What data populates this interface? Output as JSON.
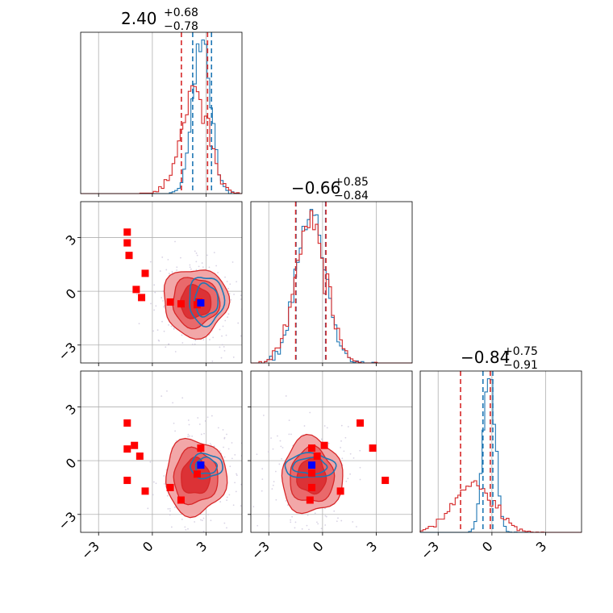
{
  "chart_data": {
    "type": "corner",
    "parameters": 3,
    "axis_range": [
      -4,
      5
    ],
    "ticks": [
      {
        "value": -3,
        "label": "−3"
      },
      {
        "value": 0,
        "label": "0"
      },
      {
        "value": 3,
        "label": "3"
      }
    ],
    "grid": true,
    "colors": {
      "red": "#d62728",
      "blue": "#1f77b4",
      "marker_red": "#ff0000",
      "marker_blue": "#0000ff"
    },
    "titles": [
      {
        "main": "2.40",
        "sup": "+0.68",
        "sub": "−0.78"
      },
      {
        "main": "−0.66",
        "sup": "+0.85",
        "sub": "−0.84"
      },
      {
        "main": "−0.84",
        "sup": "+0.75",
        "sub": "−0.91"
      }
    ],
    "marginals": [
      {
        "red": {
          "mean": 2.35,
          "sd": 0.75
        },
        "blue": {
          "mean": 2.75,
          "sd": 0.5
        },
        "red_quantiles": [
          1.62,
          3.08
        ],
        "blue_quantiles": [
          2.25,
          3.3
        ]
      },
      {
        "red": {
          "mean": -0.66,
          "sd": 0.85
        },
        "blue": {
          "mean": -0.66,
          "sd": 0.8
        },
        "red_quantiles": [
          -1.5,
          0.19
        ],
        "blue_quantiles": [
          -1.48,
          0.17
        ]
      },
      {
        "red": {
          "mean": -1.05,
          "sd": 1.1
        },
        "blue": {
          "mean": -0.15,
          "sd": 0.33
        },
        "red_quantiles": [
          -1.75,
          -0.09
        ],
        "blue_quantiles": [
          -0.5,
          0.05
        ]
      }
    ],
    "joint_2d": [
      {
        "x": 0,
        "y": 1,
        "red_center": [
          2.4,
          -0.6
        ],
        "red_sd": [
          0.9,
          0.95
        ],
        "blue_center": [
          3.0,
          -0.5
        ],
        "blue_sd": [
          0.65,
          0.9
        ],
        "red_points": [
          [
            -1.4,
            3.3
          ],
          [
            -1.4,
            2.7
          ],
          [
            -1.3,
            2.0
          ],
          [
            -0.4,
            1.0
          ],
          [
            -0.9,
            0.1
          ],
          [
            -0.6,
            -0.35
          ],
          [
            1.0,
            -0.6
          ],
          [
            1.6,
            -0.7
          ],
          [
            2.5,
            -0.75
          ],
          [
            2.6,
            -0.6
          ]
        ],
        "blue_points": [
          [
            2.7,
            -0.65
          ]
        ]
      },
      {
        "x": 0,
        "y": 2,
        "red_center": [
          2.4,
          -0.9
        ],
        "red_sd": [
          0.85,
          1.05
        ],
        "blue_center": [
          3.0,
          -0.3
        ],
        "blue_sd": [
          0.6,
          0.45
        ],
        "red_points": [
          [
            -1.4,
            2.1
          ],
          [
            -1.4,
            0.65
          ],
          [
            -1.0,
            0.85
          ],
          [
            -0.7,
            0.25
          ],
          [
            -1.4,
            -1.1
          ],
          [
            -0.4,
            -1.7
          ],
          [
            1.0,
            -1.5
          ],
          [
            1.6,
            -2.2
          ],
          [
            2.7,
            0.7
          ],
          [
            2.5,
            -0.75
          ]
        ],
        "blue_points": [
          [
            2.7,
            -0.25
          ]
        ]
      },
      {
        "x": 1,
        "y": 2,
        "red_center": [
          -0.6,
          -0.85
        ],
        "red_sd": [
          0.85,
          1.05
        ],
        "blue_center": [
          -0.7,
          -0.3
        ],
        "blue_sd": [
          0.95,
          0.45
        ],
        "red_points": [
          [
            2.1,
            2.1
          ],
          [
            2.8,
            0.7
          ],
          [
            3.5,
            -1.1
          ],
          [
            0.1,
            0.85
          ],
          [
            -0.6,
            0.7
          ],
          [
            -0.3,
            0.25
          ],
          [
            -0.6,
            -0.7
          ],
          [
            -0.6,
            -1.5
          ],
          [
            1.0,
            -1.7
          ],
          [
            -0.7,
            -2.2
          ]
        ],
        "blue_points": [
          [
            -0.6,
            -0.25
          ]
        ]
      }
    ]
  }
}
